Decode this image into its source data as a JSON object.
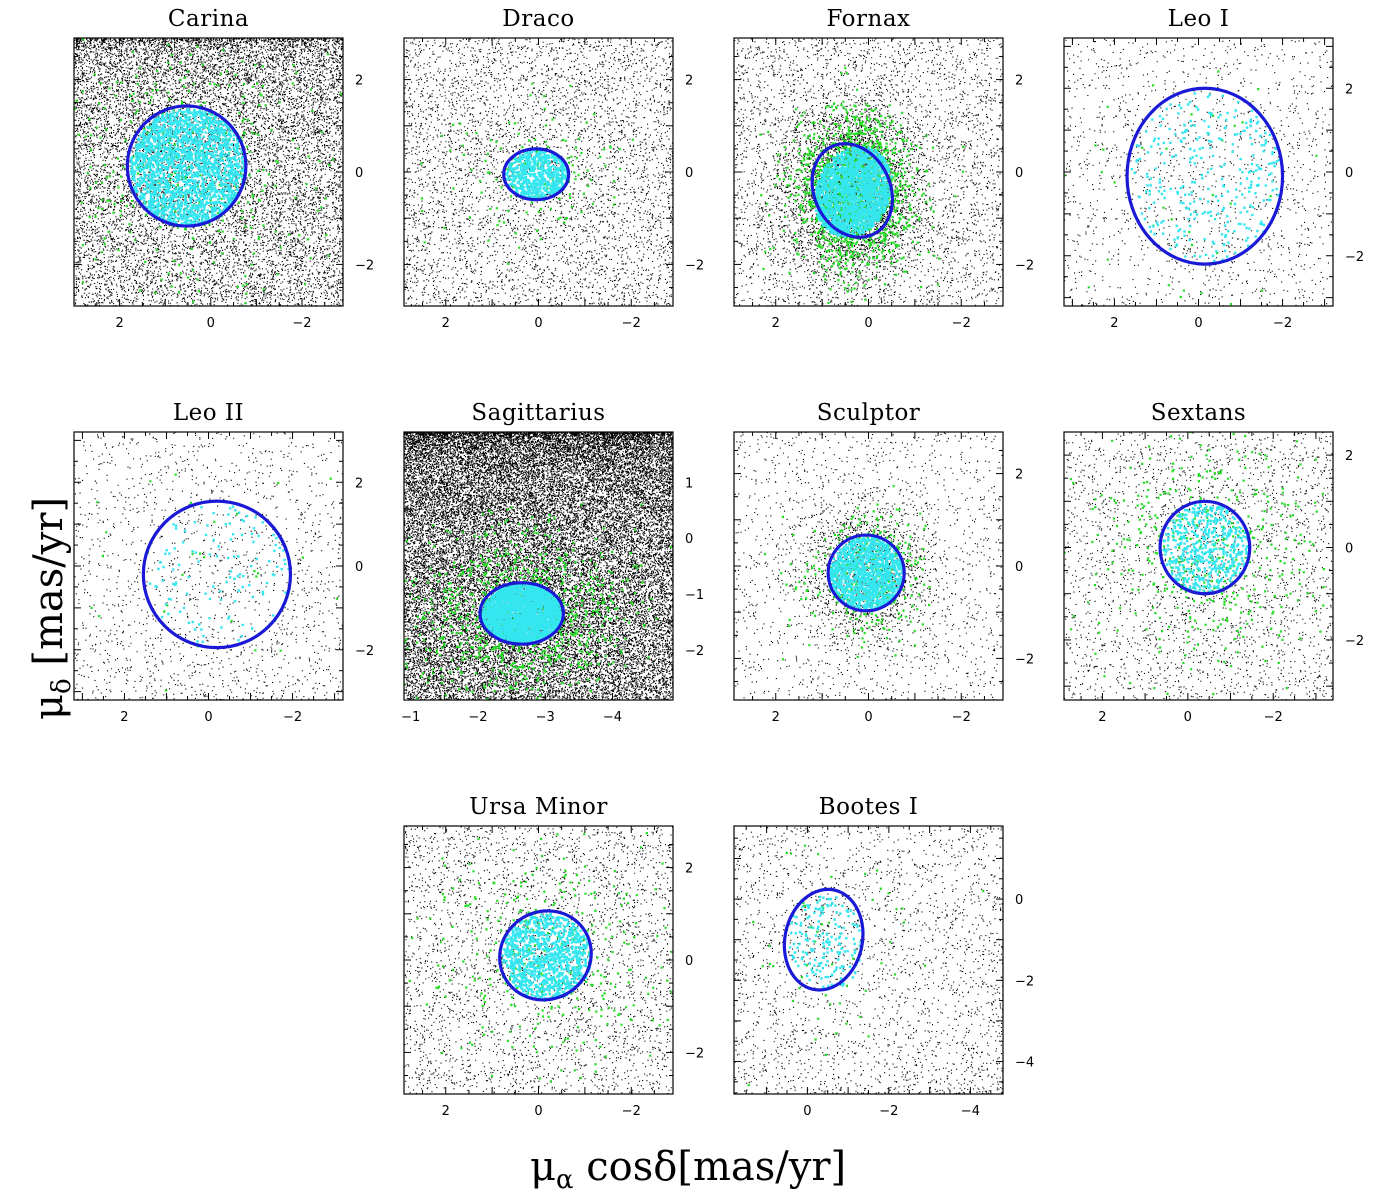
{
  "figure": {
    "xlabel_main": "μ",
    "xlabel_sub": "α",
    "xlabel_rest": " cosδ[mas/yr]",
    "ylabel_main": "μ",
    "ylabel_sub": "δ",
    "ylabel_rest": " [mas/yr]",
    "colors": {
      "background_stars": "#000000",
      "candidate_members": "#22dd22",
      "members": "#33e6f0",
      "ellipse": "#1a1ad6"
    }
  },
  "chart_data": [
    {
      "type": "scatter",
      "title": "Carina",
      "xlim": [
        3,
        -2.9
      ],
      "ylim": [
        -2.9,
        2.9
      ],
      "xticks": [
        2,
        0,
        -2
      ],
      "yticks": [
        2,
        0,
        -2
      ],
      "ellipse": {
        "cx": 0.53,
        "cy": 0.13,
        "rx": 1.3,
        "ry": 1.3,
        "angle": 0
      },
      "density": 12000,
      "gradient": "top",
      "green_count": 420,
      "cyan_count": 2000
    },
    {
      "type": "scatter",
      "title": "Draco",
      "xlim": [
        2.9,
        -2.9
      ],
      "ylim": [
        -2.9,
        2.9
      ],
      "xticks": [
        2,
        0,
        -2
      ],
      "yticks": [
        2,
        0,
        -2
      ],
      "ellipse": {
        "cx": 0.05,
        "cy": -0.05,
        "rx": 0.7,
        "ry": 0.55,
        "angle": 0
      },
      "density": 4500,
      "gradient": "none",
      "green_count": 150,
      "cyan_count": 600
    },
    {
      "type": "scatter",
      "title": "Fornax",
      "xlim": [
        2.9,
        -2.9
      ],
      "ylim": [
        -2.9,
        2.9
      ],
      "xticks": [
        2,
        0,
        -2
      ],
      "yticks": [
        2,
        0,
        -2
      ],
      "ellipse": {
        "cx": 0.35,
        "cy": -0.4,
        "rx": 0.82,
        "ry": 1.05,
        "angle": 25
      },
      "density": 7000,
      "gradient": "center",
      "green_count": 1500,
      "cyan_count": 1800
    },
    {
      "type": "scatter",
      "title": "Leo I",
      "xlim": [
        3.2,
        -3.2
      ],
      "ylim": [
        -3.2,
        3.2
      ],
      "xticks": [
        2,
        0,
        -2
      ],
      "yticks": [
        2,
        0,
        -2
      ],
      "ellipse": {
        "cx": -0.15,
        "cy": -0.1,
        "rx": 1.85,
        "ry": 2.1,
        "angle": 0
      },
      "density": 1400,
      "gradient": "none",
      "green_count": 70,
      "cyan_count": 300
    },
    {
      "type": "scatter",
      "title": "Leo II",
      "xlim": [
        3.2,
        -3.2
      ],
      "ylim": [
        -3.2,
        3.2
      ],
      "xticks": [
        2,
        0,
        -2
      ],
      "yticks": [
        2,
        0,
        -2
      ],
      "ellipse": {
        "cx": -0.2,
        "cy": -0.2,
        "rx": 1.75,
        "ry": 1.75,
        "angle": 0
      },
      "density": 1600,
      "gradient": "bottom",
      "green_count": 40,
      "cyan_count": 120
    },
    {
      "type": "scatter",
      "title": "Sagittarius",
      "xlim": [
        -0.9,
        -4.9
      ],
      "ylim": [
        -2.9,
        1.9
      ],
      "xticks": [
        -1,
        -2,
        -3,
        -4
      ],
      "yticks": [
        1,
        0,
        -1,
        -2
      ],
      "ellipse": {
        "cx": -2.65,
        "cy": -1.35,
        "rx": 0.62,
        "ry": 0.55,
        "angle": 0
      },
      "density": 30000,
      "gradient": "top",
      "green_count": 1000,
      "cyan_count": 2500
    },
    {
      "type": "scatter",
      "title": "Sculptor",
      "xlim": [
        2.9,
        -2.9
      ],
      "ylim": [
        -2.9,
        2.9
      ],
      "xticks": [
        2,
        0,
        -2
      ],
      "yticks": [
        2,
        0,
        -2
      ],
      "ellipse": {
        "cx": 0.05,
        "cy": -0.15,
        "rx": 0.82,
        "ry": 0.82,
        "angle": 0
      },
      "density": 3000,
      "gradient": "center",
      "green_count": 350,
      "cyan_count": 1200
    },
    {
      "type": "scatter",
      "title": "Sextans",
      "xlim": [
        2.9,
        -3.4
      ],
      "ylim": [
        -3.3,
        2.5
      ],
      "xticks": [
        2,
        0,
        -2
      ],
      "yticks": [
        2,
        0,
        -2
      ],
      "ellipse": {
        "cx": -0.4,
        "cy": 0.0,
        "rx": 1.05,
        "ry": 1.0,
        "angle": 0
      },
      "density": 2500,
      "gradient": "none",
      "green_count": 450,
      "cyan_count": 500
    },
    {
      "type": "scatter",
      "title": "Ursa Minor",
      "xlim": [
        2.9,
        -2.9
      ],
      "ylim": [
        -2.9,
        2.9
      ],
      "xticks": [
        2,
        0,
        -2
      ],
      "yticks": [
        2,
        0,
        -2
      ],
      "ellipse": {
        "cx": -0.15,
        "cy": 0.1,
        "rx": 1.0,
        "ry": 0.95,
        "angle": 30
      },
      "density": 3200,
      "gradient": "none",
      "green_count": 350,
      "cyan_count": 1000
    },
    {
      "type": "scatter",
      "title": "Bootes I",
      "xlim": [
        1.8,
        -4.8
      ],
      "ylim": [
        -4.8,
        1.8
      ],
      "xticks": [
        0,
        -2,
        -4
      ],
      "yticks": [
        0,
        -2,
        -4
      ],
      "ellipse": {
        "cx": -0.4,
        "cy": -1.0,
        "rx": 0.95,
        "ry": 1.25,
        "angle": -12
      },
      "density": 2400,
      "gradient": "bottom-right",
      "green_count": 60,
      "cyan_count": 180
    }
  ]
}
